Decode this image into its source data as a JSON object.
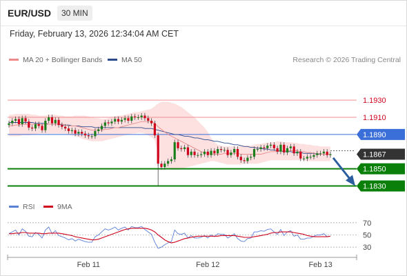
{
  "header": {
    "symbol": "EUR/USD",
    "timeframe": "30 MIN",
    "datetime": "Friday, February 13, 2026 12:34:04 AM CET"
  },
  "legend": {
    "ma20_label": "MA 20 + Bollinger Bands",
    "ma50_label": "MA 50",
    "credit": "Research © 2026 Trading Central",
    "rsi_label": "RSI",
    "rsi_ma_label": "9MA"
  },
  "colors": {
    "resistance": "#d0021b",
    "resistance_strong": "#f4a6a6",
    "pivot": "#3a6ed8",
    "support": "#0a7f0a",
    "ma20": "#e98b8b",
    "ma50": "#2b4a8c",
    "band": "#fde0e0",
    "candle_up": "#1a7f1a",
    "candle_down": "#d0021b",
    "arrow": "#2c5d9e",
    "rsi": "#5b7fd6",
    "rsi_ma": "#d0021b"
  },
  "chart_data": {
    "type": "candlestick",
    "price_levels": [
      {
        "name": "resistance_2",
        "value": 1.193,
        "label": "1.1930"
      },
      {
        "name": "resistance_1",
        "value": 1.191,
        "label": "1.1910"
      },
      {
        "name": "pivot",
        "value": 1.189,
        "label": "1.1890"
      },
      {
        "name": "last_price",
        "value": 1.1867,
        "label": "1.1867"
      },
      {
        "name": "support_1",
        "value": 1.185,
        "label": "1.1850"
      },
      {
        "name": "support_2",
        "value": 1.183,
        "label": "1.1830"
      }
    ],
    "price_range": [
      1.182,
      1.1955
    ],
    "x_ticks": [
      "Feb 11",
      "Feb 12",
      "Feb 13"
    ],
    "x_tick_index": [
      24,
      60,
      94
    ],
    "rsi_ticks": [
      70,
      50,
      30
    ],
    "rsi_range": [
      20,
      80
    ],
    "candle_count": 98,
    "candles_close": [
      1.1903,
      1.1906,
      1.1908,
      1.1902,
      1.1909,
      1.1905,
      1.1898,
      1.1897,
      1.1902,
      1.19,
      1.1895,
      1.1906,
      1.191,
      1.1903,
      1.1907,
      1.1901,
      1.1899,
      1.1897,
      1.1894,
      1.1895,
      1.1891,
      1.1893,
      1.1891,
      1.1889,
      1.1888,
      1.1888,
      1.1894,
      1.1896,
      1.19,
      1.1904,
      1.1903,
      1.1905,
      1.1908,
      1.1905,
      1.1907,
      1.1909,
      1.1906,
      1.1911,
      1.191,
      1.191,
      1.1912,
      1.1909,
      1.1906,
      1.1903,
      1.1889,
      1.1856,
      1.1852,
      1.1856,
      1.1859,
      1.1861,
      1.1881,
      1.1874,
      1.1873,
      1.1875,
      1.1866,
      1.187,
      1.1866,
      1.1866,
      1.1867,
      1.187,
      1.1866,
      1.1871,
      1.1868,
      1.1873,
      1.1872,
      1.1872,
      1.1866,
      1.1869,
      1.1873,
      1.1864,
      1.186,
      1.1859,
      1.1863,
      1.1864,
      1.1873,
      1.1873,
      1.1875,
      1.1874,
      1.1877,
      1.1878,
      1.1874,
      1.187,
      1.1878,
      1.1869,
      1.1874,
      1.1876,
      1.1868,
      1.187,
      1.1862,
      1.1862,
      1.1864,
      1.1864,
      1.1866,
      1.1868,
      1.1868,
      1.187,
      1.1866,
      1.1867
    ],
    "ma20": [
      1.19,
      1.19,
      1.1901,
      1.1901,
      1.1902,
      1.1902,
      1.1902,
      1.1902,
      1.1902,
      1.1902,
      1.1901,
      1.1902,
      1.1902,
      1.1902,
      1.1902,
      1.1902,
      1.1902,
      1.1901,
      1.19,
      1.19,
      1.19,
      1.1899,
      1.1898,
      1.1897,
      1.1896,
      1.1895,
      1.1895,
      1.1895,
      1.1895,
      1.1896,
      1.1896,
      1.1897,
      1.1898,
      1.1898,
      1.1899,
      1.19,
      1.1901,
      1.1902,
      1.1903,
      1.1904,
      1.1905,
      1.1905,
      1.1905,
      1.1905,
      1.1903,
      1.1899,
      1.1896,
      1.1893,
      1.189,
      1.1888,
      1.1886,
      1.1884,
      1.1882,
      1.188,
      1.1878,
      1.1876,
      1.1874,
      1.1872,
      1.187,
      1.1869,
      1.1868,
      1.1867,
      1.1867,
      1.1867,
      1.1867,
      1.1868,
      1.1868,
      1.1868,
      1.1868,
      1.1868,
      1.1867,
      1.1867,
      1.1867,
      1.1867,
      1.1867,
      1.1867,
      1.1867,
      1.1868,
      1.1869,
      1.187,
      1.187,
      1.187,
      1.1871,
      1.1871,
      1.1871,
      1.1871,
      1.1871,
      1.1871,
      1.187,
      1.187,
      1.1869,
      1.1869,
      1.1868,
      1.1868,
      1.1867,
      1.1867,
      1.1867,
      1.1867
    ],
    "ma50": [
      1.1904,
      1.1904,
      1.1904,
      1.1904,
      1.1904,
      1.1904,
      1.1904,
      1.1904,
      1.1903,
      1.1903,
      1.1903,
      1.1903,
      1.1902,
      1.1902,
      1.1902,
      1.1902,
      1.1901,
      1.1901,
      1.1901,
      1.19,
      1.19,
      1.19,
      1.1899,
      1.1899,
      1.1899,
      1.1899,
      1.1898,
      1.1898,
      1.1898,
      1.1898,
      1.1898,
      1.1898,
      1.1898,
      1.1898,
      1.1898,
      1.1898,
      1.1898,
      1.1898,
      1.1898,
      1.1898,
      1.1898,
      1.1897,
      1.1897,
      1.1897,
      1.1896,
      1.1895,
      1.1894,
      1.1893,
      1.1892,
      1.1891,
      1.189,
      1.189,
      1.1889,
      1.1888,
      1.1888,
      1.1887,
      1.1886,
      1.1886,
      1.1885,
      1.1884,
      1.1884,
      1.1883,
      1.1882,
      1.1882,
      1.1881,
      1.188,
      1.188,
      1.1879,
      1.1878,
      1.1878,
      1.1877,
      1.1876,
      1.1876,
      1.1875,
      1.1875,
      1.1874,
      1.1874,
      1.1873,
      1.1873,
      1.1872,
      1.1872,
      1.1871,
      1.1871,
      1.187,
      1.187,
      1.187,
      1.1869,
      1.1869,
      1.1869,
      1.1868,
      1.1868,
      1.1868,
      1.1868,
      1.1867,
      1.1867,
      1.1867,
      1.1867,
      1.1867
    ],
    "band_upper": [
      1.1913,
      1.1913,
      1.1914,
      1.1914,
      1.1914,
      1.1914,
      1.1914,
      1.1913,
      1.1913,
      1.1912,
      1.1912,
      1.1912,
      1.1913,
      1.1913,
      1.1913,
      1.1912,
      1.1912,
      1.1911,
      1.1911,
      1.1911,
      1.1912,
      1.1912,
      1.1912,
      1.1912,
      1.1911,
      1.191,
      1.1909,
      1.1909,
      1.1908,
      1.1908,
      1.1909,
      1.191,
      1.1911,
      1.1912,
      1.1912,
      1.1913,
      1.1914,
      1.1915,
      1.1916,
      1.1916,
      1.1917,
      1.1918,
      1.1919,
      1.192,
      1.1923,
      1.1926,
      1.1928,
      1.1928,
      1.1928,
      1.1927,
      1.1926,
      1.1924,
      1.1922,
      1.1919,
      1.1916,
      1.1913,
      1.191,
      1.1906,
      1.1902,
      1.1898,
      1.1893,
      1.1886,
      1.1881,
      1.1878,
      1.1877,
      1.1876,
      1.1876,
      1.1876,
      1.1876,
      1.1876,
      1.1877,
      1.1877,
      1.1877,
      1.1877,
      1.1878,
      1.1879,
      1.1879,
      1.188,
      1.188,
      1.1881,
      1.1881,
      1.1882,
      1.1882,
      1.1881,
      1.1881,
      1.1881,
      1.188,
      1.188,
      1.1879,
      1.1879,
      1.1878,
      1.1878,
      1.1877,
      1.1877,
      1.1876,
      1.1876,
      1.1876,
      1.1876
    ],
    "band_lower": [
      1.1888,
      1.1888,
      1.1888,
      1.1888,
      1.1889,
      1.1889,
      1.1889,
      1.189,
      1.189,
      1.1891,
      1.1891,
      1.1891,
      1.1891,
      1.1891,
      1.1891,
      1.1891,
      1.1891,
      1.1891,
      1.189,
      1.1889,
      1.1888,
      1.1887,
      1.1885,
      1.1884,
      1.1883,
      1.1882,
      1.1882,
      1.1882,
      1.1882,
      1.1883,
      1.1884,
      1.1885,
      1.1886,
      1.1887,
      1.1888,
      1.1889,
      1.189,
      1.1891,
      1.1891,
      1.1892,
      1.1892,
      1.1891,
      1.1889,
      1.1887,
      1.1883,
      1.1868,
      1.1856,
      1.1852,
      1.185,
      1.1849,
      1.1849,
      1.1849,
      1.185,
      1.1851,
      1.1852,
      1.1853,
      1.1854,
      1.1855,
      1.1856,
      1.1857,
      1.1858,
      1.1859,
      1.1859,
      1.1858,
      1.1857,
      1.1856,
      1.1855,
      1.1855,
      1.1855,
      1.1855,
      1.1855,
      1.1856,
      1.1856,
      1.1856,
      1.1856,
      1.1856,
      1.1857,
      1.1858,
      1.1859,
      1.186,
      1.186,
      1.186,
      1.186,
      1.186,
      1.186,
      1.186,
      1.186,
      1.186,
      1.186,
      1.186,
      1.1859,
      1.1859,
      1.1859,
      1.1859,
      1.1859,
      1.1859,
      1.1859,
      1.1859
    ],
    "rsi": [
      52,
      55,
      58,
      50,
      60,
      56,
      48,
      47,
      54,
      51,
      45,
      58,
      63,
      52,
      57,
      49,
      47,
      45,
      42,
      44,
      40,
      43,
      41,
      39,
      38,
      38,
      47,
      50,
      55,
      60,
      58,
      60,
      63,
      58,
      61,
      63,
      58,
      64,
      62,
      62,
      64,
      59,
      55,
      51,
      38,
      28,
      30,
      34,
      37,
      39,
      58,
      52,
      51,
      53,
      45,
      49,
      45,
      45,
      46,
      49,
      45,
      50,
      47,
      52,
      51,
      51,
      45,
      48,
      52,
      44,
      40,
      39,
      44,
      45,
      55,
      55,
      57,
      56,
      59,
      60,
      55,
      51,
      59,
      49,
      55,
      57,
      48,
      50,
      43,
      43,
      45,
      45,
      48,
      50,
      50,
      52,
      47,
      48
    ],
    "rsi_ma": [
      52,
      52,
      53,
      53,
      54,
      54,
      53,
      53,
      53,
      53,
      52,
      52,
      53,
      53,
      53,
      53,
      52,
      51,
      50,
      49,
      47,
      46,
      45,
      44,
      43,
      42,
      42,
      43,
      45,
      47,
      49,
      51,
      53,
      55,
      57,
      59,
      60,
      61,
      61,
      61,
      61,
      61,
      60,
      58,
      55,
      50,
      46,
      42,
      39,
      37,
      38,
      40,
      42,
      44,
      45,
      46,
      47,
      48,
      48,
      48,
      48,
      48,
      48,
      48,
      49,
      49,
      49,
      49,
      49,
      48,
      47,
      46,
      46,
      46,
      47,
      48,
      49,
      50,
      51,
      53,
      54,
      54,
      55,
      55,
      55,
      55,
      54,
      53,
      52,
      51,
      49,
      48,
      47,
      47,
      47,
      47,
      47,
      48
    ]
  },
  "forecast_arrow": {
    "from_index": 97,
    "from_value": 1.1866,
    "to_value": 1.183
  }
}
